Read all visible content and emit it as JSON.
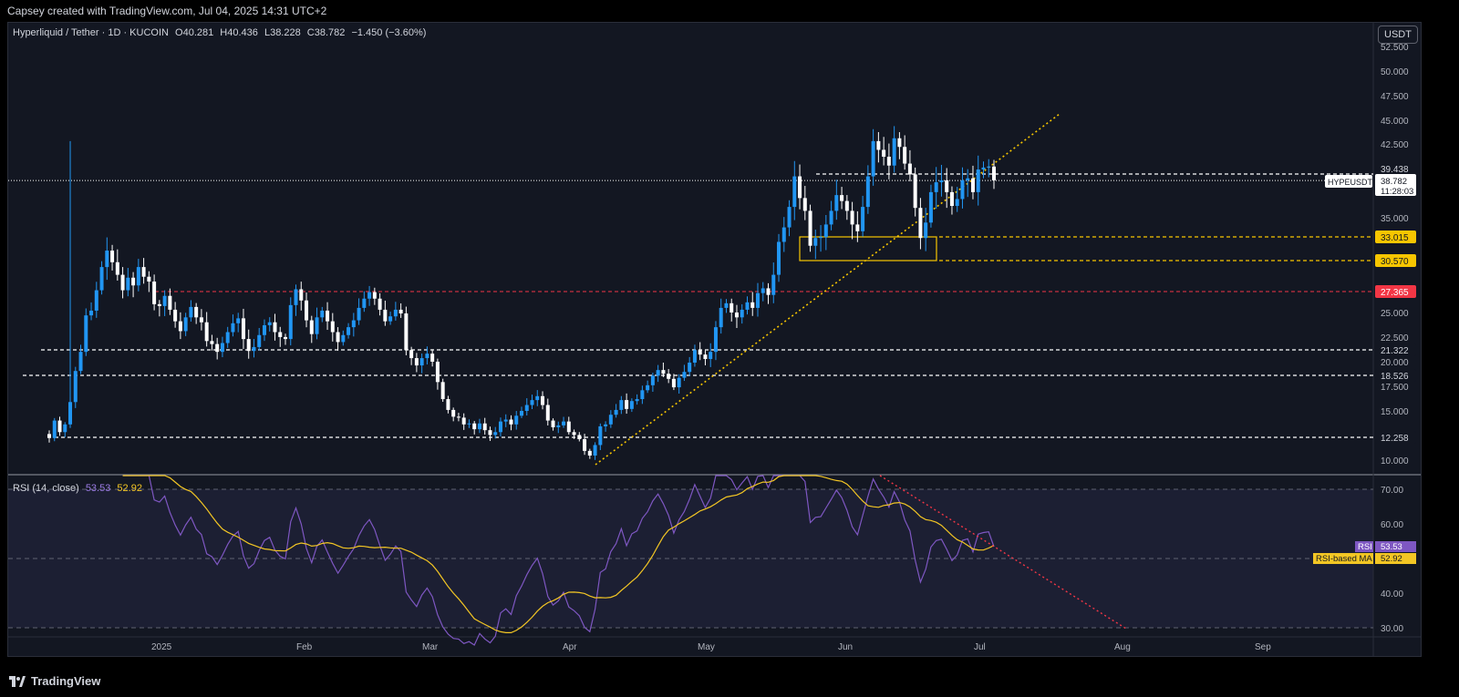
{
  "header": {
    "credit": "Capsey created with TradingView.com, Jul 04, 2025 14:31 UTC+2"
  },
  "legend": {
    "symbol": "Hyperliquid / Tether · 1D · KUCOIN",
    "open": "O40.281",
    "high": "H40.436",
    "low": "L38.228",
    "close": "C38.782",
    "change": "−1.450 (−3.60%)"
  },
  "price_axis": {
    "unit": "USDT",
    "ticks": [
      "52.500",
      "50.000",
      "47.500",
      "45.000",
      "42.500",
      "35.000",
      "25.000",
      "22.500",
      "20.000",
      "17.500",
      "15.000",
      "10.000"
    ]
  },
  "price_labels": [
    {
      "value": 39.438,
      "text": "39.438",
      "bg": "#131722",
      "fg": "#d1d4dc"
    },
    {
      "value": 33.015,
      "text": "33.015",
      "bg": "#f7c600",
      "fg": "#131722"
    },
    {
      "value": 30.57,
      "text": "30.570",
      "bg": "#f7c600",
      "fg": "#131722"
    },
    {
      "value": 27.365,
      "text": "27.365",
      "bg": "#f23645",
      "fg": "#ffffff"
    },
    {
      "value": 21.322,
      "text": "21.322",
      "bg": "#131722",
      "fg": "#d1d4dc"
    },
    {
      "value": 18.526,
      "text": "18.526",
      "bg": "#131722",
      "fg": "#d1d4dc"
    },
    {
      "value": 12.258,
      "text": "12.258",
      "bg": "#131722",
      "fg": "#d1d4dc"
    }
  ],
  "current_price": {
    "symbol": "HYPEUSDT",
    "price": "38.782",
    "countdown": "11:28:03"
  },
  "time_axis": [
    "2025",
    "Feb",
    "Mar",
    "Apr",
    "May",
    "Jun",
    "Jul",
    "Aug",
    "Sep"
  ],
  "rsi": {
    "legend_label": "RSI (14, close)",
    "rsi_value": "53.53",
    "ma_value": "52.92",
    "ticks": [
      "70.00",
      "60.00",
      "40.00",
      "30.00"
    ],
    "tag_rsi_name": "RSI",
    "tag_ma_name": "RSI-based MA"
  },
  "colors": {
    "bull": "#2196f3",
    "bear": "#ffffff",
    "rsi": "#7e57c2",
    "rsi_ma": "#f3c624",
    "support": "#f7c600",
    "resistance": "#f23645"
  },
  "footer": {
    "brand": "TradingView"
  },
  "chart_data": {
    "type": "candlestick",
    "ylim": [
      9,
      54
    ],
    "horizontal_levels": [
      39.438,
      33.015,
      30.57,
      27.365,
      21.322,
      18.526,
      12.258
    ],
    "zone": {
      "low": 30.57,
      "high": 33.015
    },
    "series": [
      {
        "name": "HYPEUSDT",
        "close": [
          12.2,
          14.0,
          12.8,
          13.6,
          15.9,
          19.0,
          21.1,
          24.8,
          25.3,
          27.5,
          29.9,
          31.6,
          30.4,
          29.1,
          27.5,
          28.8,
          28.0,
          29.9,
          28.9,
          28.4,
          26.0,
          25.8,
          26.9,
          25.4,
          24.2,
          23.2,
          24.6,
          25.7,
          24.6,
          24.1,
          22.2,
          21.9,
          21.1,
          22.0,
          23.1,
          24.0,
          24.5,
          22.4,
          21.2,
          21.6,
          22.8,
          23.8,
          24.1,
          23.1,
          22.6,
          22.4,
          25.9,
          27.6,
          26.4,
          24.3,
          22.9,
          24.6,
          25.3,
          24.2,
          23.1,
          22.1,
          22.8,
          23.6,
          24.3,
          25.6,
          26.6,
          27.3,
          26.6,
          25.4,
          24.2,
          24.7,
          25.4,
          25.0,
          21.3,
          20.4,
          19.6,
          20.4,
          20.9,
          20.0,
          17.9,
          16.2,
          15.1,
          14.4,
          14.3,
          13.6,
          13.7,
          13.1,
          13.7,
          13.0,
          12.5,
          12.8,
          13.9,
          14.1,
          13.6,
          14.5,
          15.0,
          15.6,
          16.1,
          16.5,
          15.6,
          14.0,
          13.3,
          13.5,
          13.9,
          12.8,
          12.5,
          12.1,
          11.1,
          10.7,
          11.6,
          13.4,
          13.6,
          14.6,
          15.1,
          16.1,
          15.2,
          16.0,
          16.2,
          17.1,
          17.6,
          18.5,
          19.1,
          18.7,
          18.2,
          17.4,
          18.3,
          18.9,
          19.9,
          21.3,
          20.8,
          20.3,
          21.1,
          23.6,
          25.6,
          26.1,
          25.1,
          24.6,
          25.4,
          26.2,
          25.6,
          27.2,
          27.7,
          27.0,
          29.1,
          32.5,
          34.0,
          36.1,
          39.2,
          37.0,
          35.7,
          32.1,
          32.9,
          33.0,
          34.3,
          35.7,
          37.3,
          36.7,
          35.7,
          34.3,
          33.6,
          36.1,
          39.2,
          42.8,
          41.9,
          41.2,
          40.3,
          43.1,
          42.2,
          40.5,
          39.4,
          36.0,
          32.9,
          34.5,
          37.6,
          38.6,
          38.8,
          37.6,
          36.2,
          36.9,
          38.8,
          39.0,
          37.6,
          39.9,
          40.1,
          40.2,
          38.8
        ]
      }
    ],
    "ohlc_last": {
      "open": 40.281,
      "high": 40.436,
      "low": 38.228,
      "close": 38.782,
      "change": -1.45,
      "change_pct": -3.6
    }
  }
}
